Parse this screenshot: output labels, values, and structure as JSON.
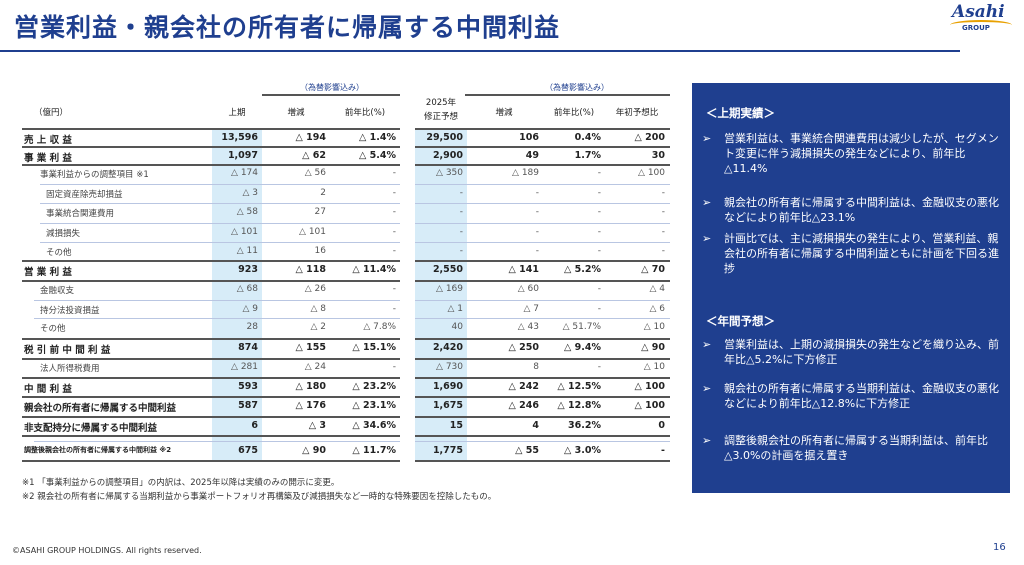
{
  "title": "営業利益・親会社の所有者に帰属する中間利益",
  "logo": {
    "brand": "Asahi",
    "group": "GROUP"
  },
  "table": {
    "unit": "（億円）",
    "fx_label_1": "（為替影響込み）",
    "fx_label_2": "（為替影響込み）",
    "headers": [
      "上期",
      "増減",
      "前年比(%)",
      "2025年\n修正予想",
      "増減",
      "前年比(%)",
      "年初予想比"
    ],
    "rows": [
      {
        "label": "売 上 収 益",
        "v": [
          "13,596",
          "△ 194",
          "△ 1.4%",
          "29,500",
          "106",
          "0.4%",
          "△ 200"
        ]
      },
      {
        "label": "事 業 利 益",
        "v": [
          "1,097",
          "△ 62",
          "△ 5.4%",
          "2,900",
          "49",
          "1.7%",
          "30"
        ]
      },
      {
        "label": "事業利益からの調整項目 ※1",
        "v": [
          "△ 174",
          "△ 56",
          "-",
          "△ 350",
          "△ 189",
          "-",
          "△ 100"
        ]
      },
      {
        "label": "固定資産除売却損益",
        "v": [
          "△ 3",
          "2",
          "-",
          "-",
          "-",
          "-",
          "-"
        ]
      },
      {
        "label": "事業統合関連費用",
        "v": [
          "△ 58",
          "27",
          "-",
          "-",
          "-",
          "-",
          "-"
        ]
      },
      {
        "label": "減損損失",
        "v": [
          "△ 101",
          "△ 101",
          "-",
          "-",
          "-",
          "-",
          "-"
        ]
      },
      {
        "label": "その他",
        "v": [
          "△ 11",
          "16",
          "-",
          "-",
          "-",
          "-",
          "-"
        ]
      },
      {
        "label": "営 業 利 益",
        "v": [
          "923",
          "△ 118",
          "△ 11.4%",
          "2,550",
          "△ 141",
          "△ 5.2%",
          "△ 70"
        ]
      },
      {
        "label": "金融収支",
        "v": [
          "△ 68",
          "△ 26",
          "-",
          "△ 169",
          "△ 60",
          "-",
          "△ 4"
        ]
      },
      {
        "label": "持分法投資損益",
        "v": [
          "△ 9",
          "△ 8",
          "-",
          "△ 1",
          "△ 7",
          "-",
          "△ 6"
        ]
      },
      {
        "label": "その他",
        "v": [
          "28",
          "△ 2",
          "△ 7.8%",
          "40",
          "△ 43",
          "△ 51.7%",
          "△ 10"
        ]
      },
      {
        "label": "税 引 前 中 間 利 益",
        "v": [
          "874",
          "△ 155",
          "△ 15.1%",
          "2,420",
          "△ 250",
          "△ 9.4%",
          "△ 90"
        ]
      },
      {
        "label": "法人所得税費用",
        "v": [
          "△ 281",
          "△ 24",
          "-",
          "△ 730",
          "8",
          "-",
          "△ 10"
        ]
      },
      {
        "label": "中 間 利 益",
        "v": [
          "593",
          "△ 180",
          "△ 23.2%",
          "1,690",
          "△ 242",
          "△ 12.5%",
          "△ 100"
        ]
      },
      {
        "label": "親会社の所有者に帰属する中間利益",
        "v": [
          "587",
          "△ 176",
          "△ 23.1%",
          "1,675",
          "△ 246",
          "△ 12.8%",
          "△ 100"
        ]
      },
      {
        "label": "非支配持分に帰属する中間利益",
        "v": [
          "6",
          "△ 3",
          "△ 34.6%",
          "15",
          "4",
          "36.2%",
          "0"
        ]
      },
      {
        "label": "調整後親会社の所有者に帰属する中間利益 ※2",
        "v": [
          "675",
          "△ 90",
          "△ 11.7%",
          "1,775",
          "△ 55",
          "△ 3.0%",
          "-"
        ]
      }
    ]
  },
  "notes": [
    "※1 「事業利益からの調整項目」の内訳は、2025年以降は実績のみの開示に変更。",
    "※2 親会社の所有者に帰属する当期利益から事業ポートフォリオ再構築及び減損損失など一時的な特殊要因を控除したもの。"
  ],
  "panel": {
    "section1": "＜上期実績＞",
    "bullets1": [
      "営業利益は、事業統合関連費用は減少したが、セグメント変更に伴う減損損失の発生などにより、前年比△11.4%",
      "親会社の所有者に帰属する中間利益は、金融収支の悪化などにより前年比△23.1%",
      "計画比では、主に減損損失の発生により、営業利益、親会社の所有者に帰属する中間利益ともに計画を下回る進捗"
    ],
    "section2": "＜年間予想＞",
    "bullets2": [
      "営業利益は、上期の減損損失の発生などを織り込み、前年比△5.2%に下方修正",
      "親会社の所有者に帰属する当期利益は、金融収支の悪化などにより前年比△12.8%に下方修正",
      "調整後親会社の所有者に帰属する当期利益は、前年比△3.0%の計画を据え置き"
    ],
    "arrow": "➢"
  },
  "footer": "©ASAHI GROUP HOLDINGS. All rights reserved.",
  "page": "16"
}
